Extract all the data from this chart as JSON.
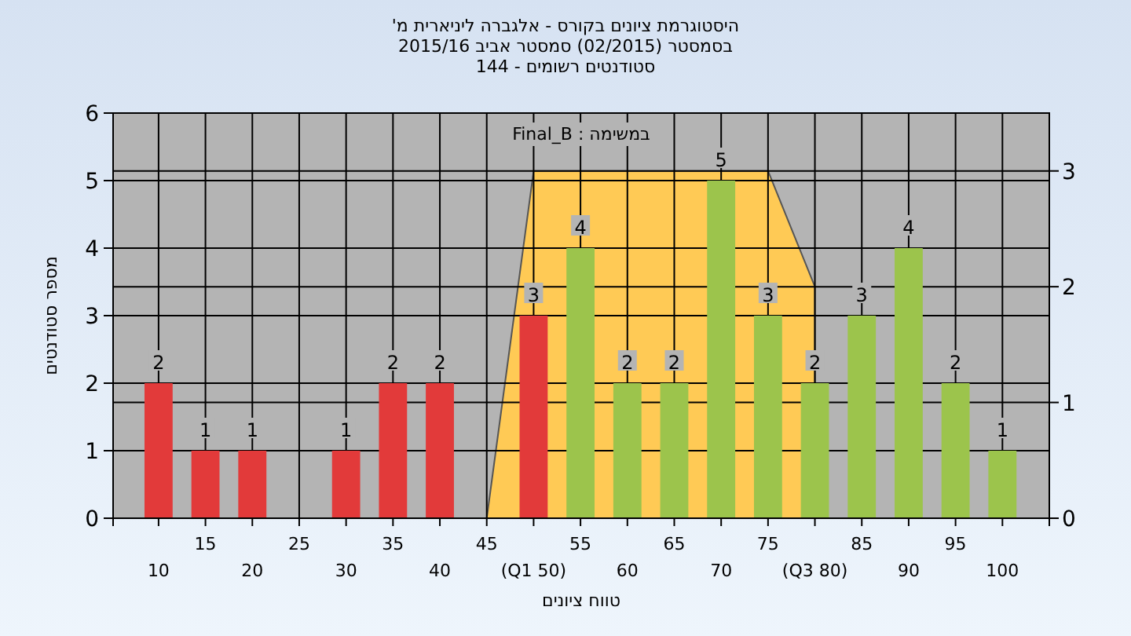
{
  "chart_data": {
    "type": "bar",
    "title": "היסטוגרמת ציונים בקורס - אלגברה ליניארית מ'",
    "subtitle": "בסמסטר  (02/2015)  סמסטר אביב 2015/16\nסטודנטים רשומים - 144",
    "xlabel": "טווח ציונים",
    "ylabel": "מספר סטודנטים",
    "annotations": [
      "במשימה : Final_B"
    ],
    "categories": [
      "10",
      "15",
      "20",
      "25",
      "30",
      "35",
      "40",
      "45",
      "(Q1 50)",
      "55",
      "60",
      "65",
      "70",
      "75",
      "(Q3 80)",
      "85",
      "90",
      "95",
      "100"
    ],
    "series": [
      {
        "values": [
          2,
          1,
          1,
          0,
          1,
          2,
          2,
          0,
          3,
          4,
          2,
          2,
          5,
          3,
          2,
          3,
          4,
          2,
          1
        ],
        "colors": [
          "#e23a3a",
          "#e23a3a",
          "#e23a3a",
          "#e23a3a",
          "#e23a3a",
          "#e23a3a",
          "#e23a3a",
          "#e23a3a",
          "#e23a3a",
          "#9cc44c",
          "#9cc44c",
          "#9cc44c",
          "#9cc44c",
          "#9cc44c",
          "#9cc44c",
          "#9cc44c",
          "#9cc44c",
          "#9cc44c",
          "#9cc44c"
        ],
        "value_labels": [
          "2",
          "1",
          "1",
          null,
          "1",
          "2",
          "2",
          null,
          "3",
          "4",
          "2",
          "2",
          "5",
          "3",
          "2",
          "3",
          "4",
          "2",
          "1"
        ]
      },
      {
        "type": "area",
        "axis": "y2",
        "color": "#ffca55",
        "values": [
          null,
          null,
          null,
          null,
          null,
          null,
          null,
          0,
          3,
          3,
          3,
          3,
          3,
          3,
          2,
          null,
          null,
          null,
          null
        ]
      }
    ],
    "ylim": [
      0,
      6
    ],
    "yticks": [
      0,
      1,
      2,
      3,
      4,
      5,
      6
    ],
    "y2lim": [
      0,
      3.5
    ],
    "y2ticks": [
      0,
      1,
      2,
      3
    ],
    "grid": true
  }
}
